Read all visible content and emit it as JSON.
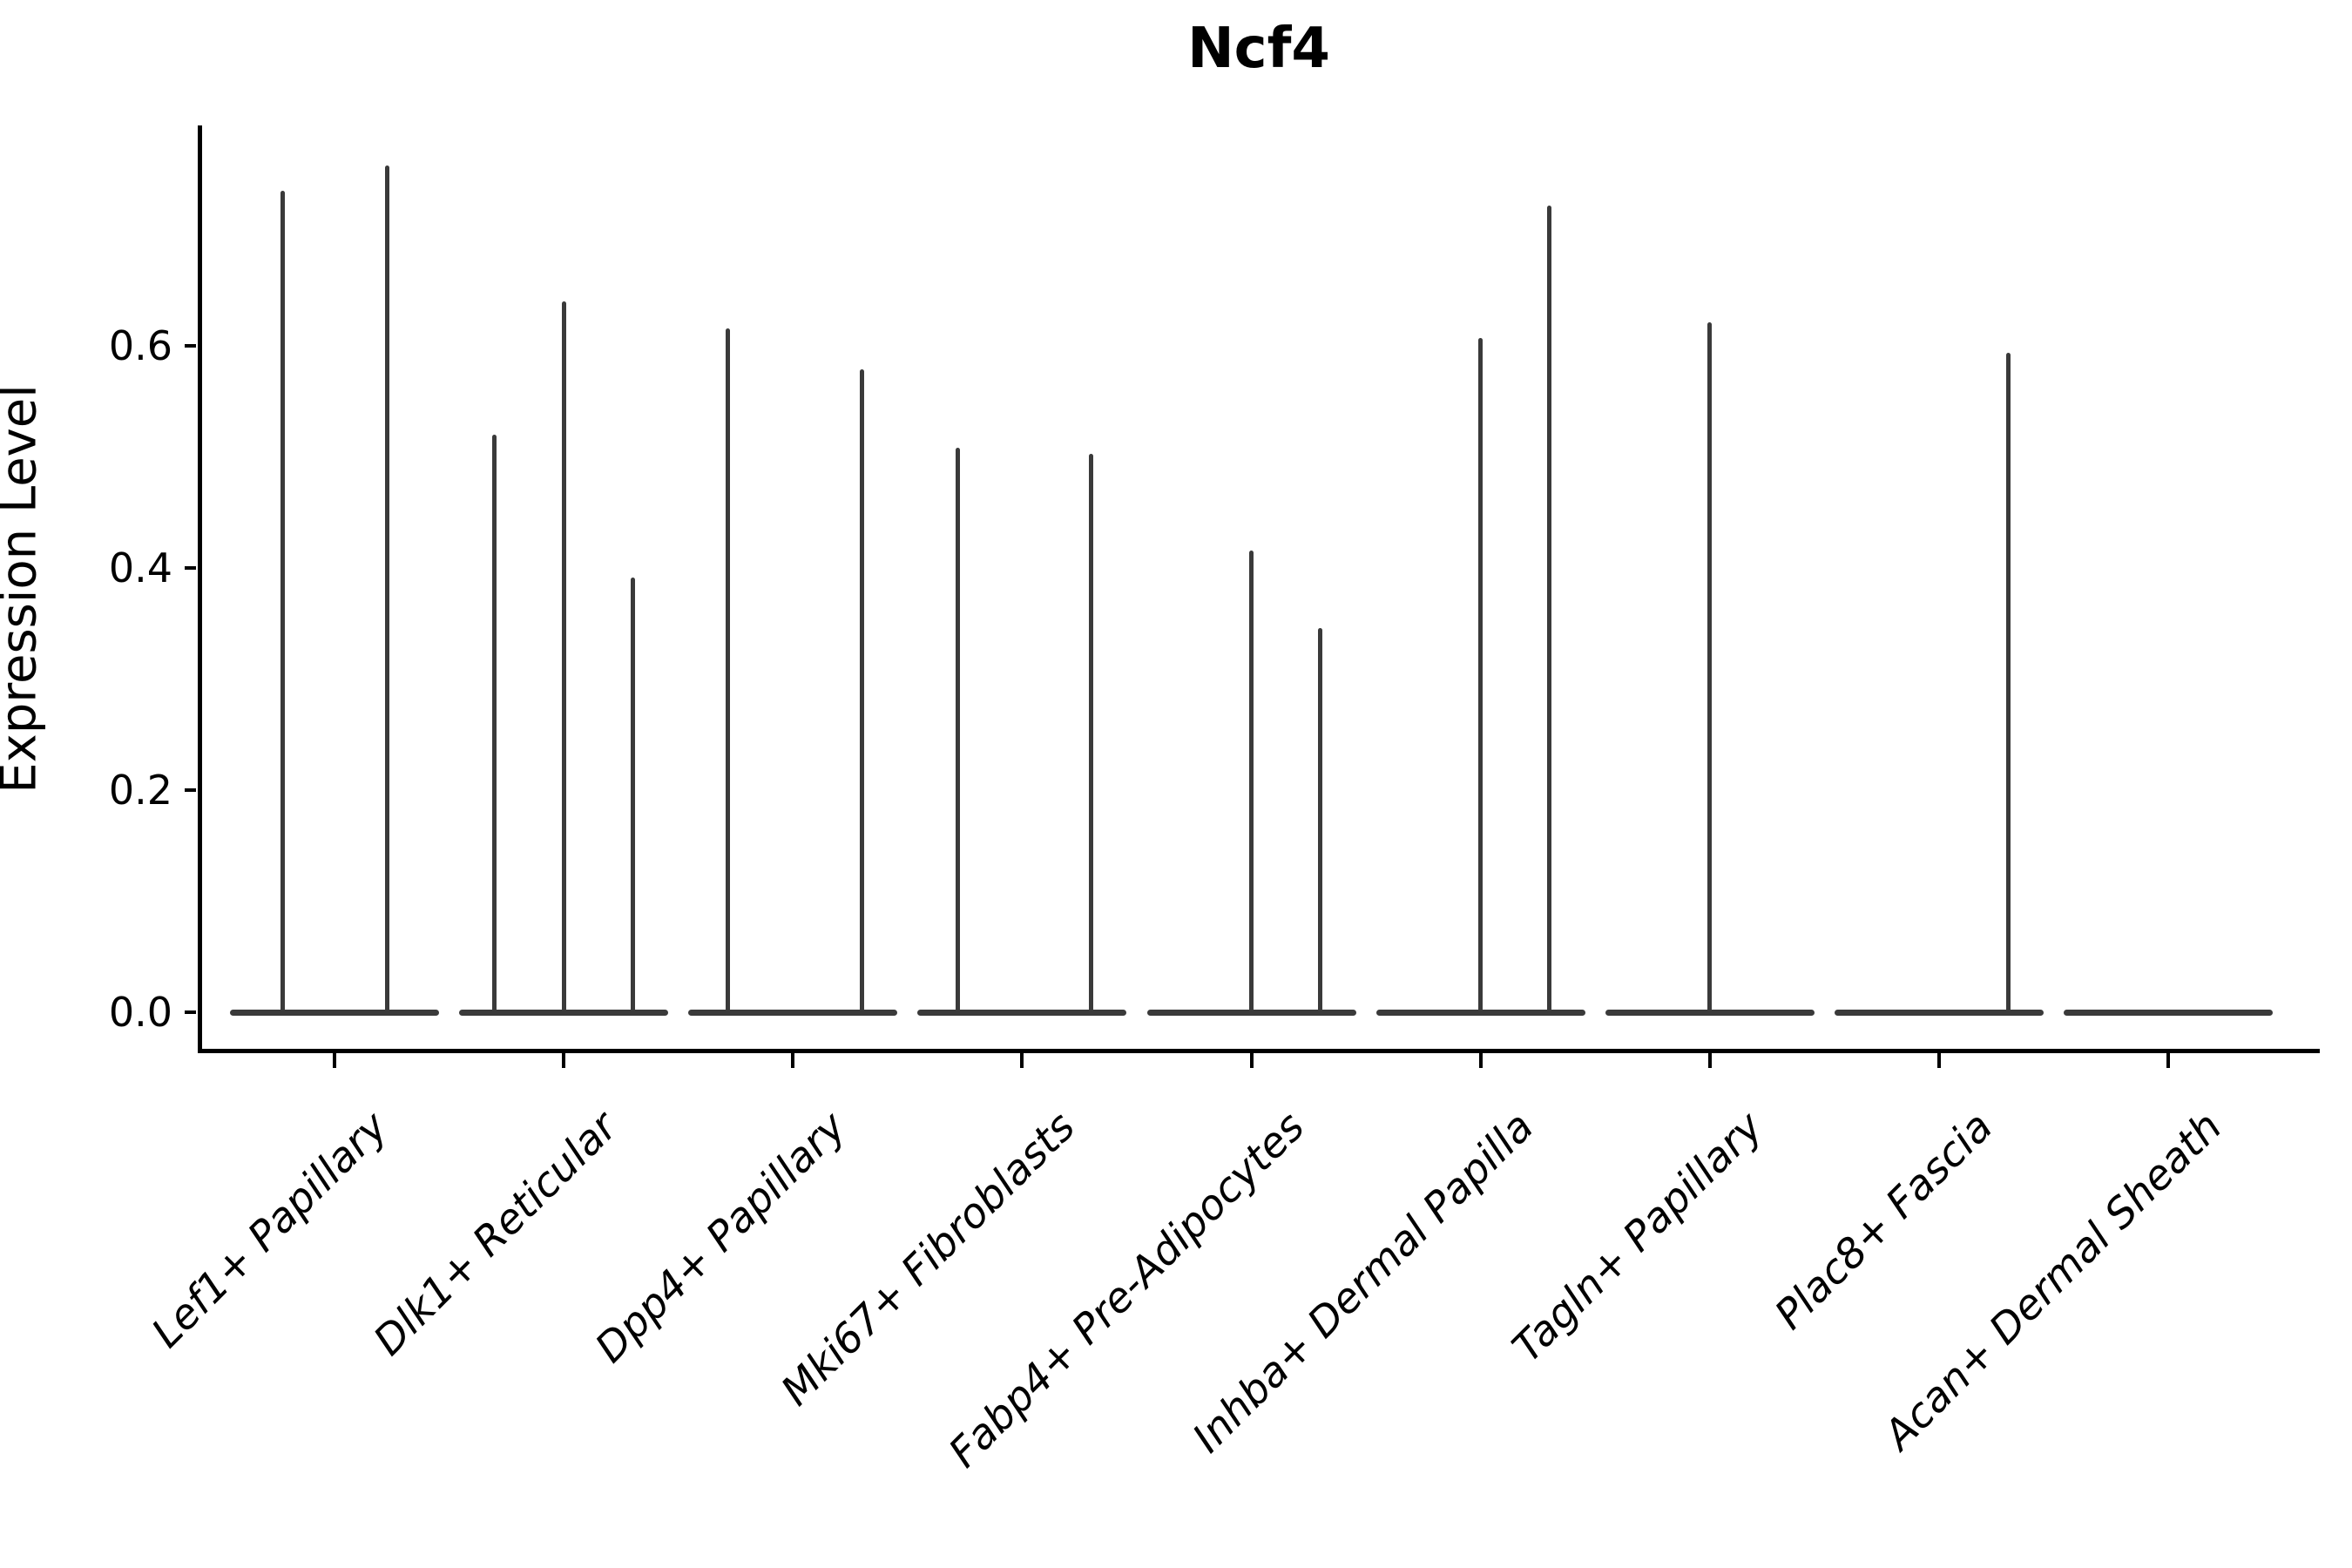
{
  "title": "Ncf4",
  "ylabel": "Expression Level",
  "chart_data": {
    "type": "violin",
    "title": "Ncf4",
    "xlabel": "",
    "ylabel": "Expression Level",
    "ylim": [
      0,
      0.8
    ],
    "yticks": [
      0.0,
      0.2,
      0.4,
      0.6
    ],
    "yticklabels": [
      "0.0",
      "0.2",
      "0.4",
      "0.6"
    ],
    "grid": false,
    "legend": "none",
    "violin_color": "#3a3a3a",
    "axis_color": "#000000",
    "categories": [
      "Lef1+ Papillary",
      "Dlk1+ Reticular",
      "Dpp4+ Papillary",
      "Mki67+ Fibroblasts",
      "Fabp4+ Pre-Adipocytes",
      "Inhba+ Dermal Papilla",
      "Tagln+ Papillary",
      "Plac8+ Fascia",
      "Acan+ Dermal Sheath"
    ],
    "series": [
      {
        "category": "Lef1+ Papillary",
        "baseline_value": 0.0,
        "spikes": [
          {
            "offset": -0.5,
            "value": 0.74
          },
          {
            "offset": 0.5,
            "value": 0.762
          }
        ]
      },
      {
        "category": "Dlk1+ Reticular",
        "baseline_value": 0.0,
        "spikes": [
          {
            "offset": -0.66,
            "value": 0.52
          },
          {
            "offset": 0.0,
            "value": 0.64
          },
          {
            "offset": 0.66,
            "value": 0.391
          }
        ]
      },
      {
        "category": "Dpp4+ Papillary",
        "baseline_value": 0.0,
        "spikes": [
          {
            "offset": -0.62,
            "value": 0.616
          },
          {
            "offset": 0.66,
            "value": 0.579
          }
        ]
      },
      {
        "category": "Mki67+ Fibroblasts",
        "baseline_value": 0.0,
        "spikes": [
          {
            "offset": -0.62,
            "value": 0.508
          },
          {
            "offset": 0.66,
            "value": 0.503
          }
        ]
      },
      {
        "category": "Fabp4+ Pre-Adipocytes",
        "baseline_value": 0.0,
        "spikes": [
          {
            "offset": 0.0,
            "value": 0.416
          },
          {
            "offset": 0.66,
            "value": 0.346
          }
        ]
      },
      {
        "category": "Inhba+ Dermal Papilla",
        "baseline_value": 0.0,
        "spikes": [
          {
            "offset": 0.0,
            "value": 0.607
          },
          {
            "offset": 0.66,
            "value": 0.726
          }
        ]
      },
      {
        "category": "Tagln+ Papillary",
        "baseline_value": 0.0,
        "spikes": [
          {
            "offset": 0.0,
            "value": 0.621
          }
        ]
      },
      {
        "category": "Plac8+ Fascia",
        "baseline_value": 0.0,
        "spikes": [
          {
            "offset": 0.66,
            "value": 0.594
          }
        ]
      },
      {
        "category": "Acan+ Dermal Sheath",
        "baseline_value": 0.0,
        "spikes": []
      }
    ]
  }
}
